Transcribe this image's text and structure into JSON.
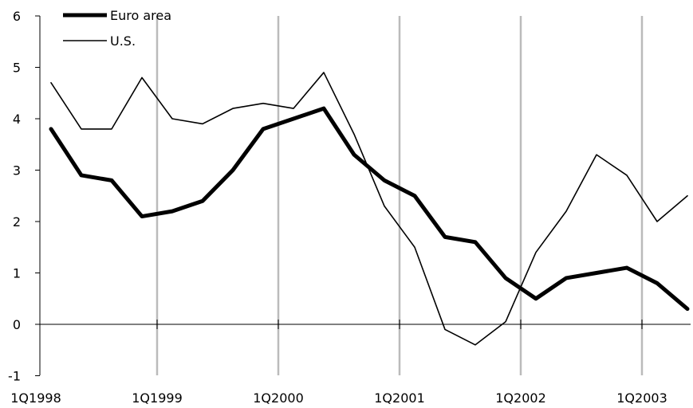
{
  "chart_data": {
    "type": "line",
    "title": "",
    "xlabel": "",
    "ylabel": "",
    "ylim": [
      -1,
      6
    ],
    "y_ticks": [
      -1,
      0,
      1,
      2,
      3,
      4,
      5,
      6
    ],
    "x_tick_labels": [
      "1Q1998",
      "1Q1999",
      "1Q2000",
      "1Q2001",
      "1Q2002",
      "1Q2003"
    ],
    "x": [
      "1Q1998",
      "2Q1998",
      "3Q1998",
      "4Q1998",
      "1Q1999",
      "2Q1999",
      "3Q1999",
      "4Q1999",
      "1Q2000",
      "2Q2000",
      "3Q2000",
      "4Q2000",
      "1Q2001",
      "2Q2001",
      "3Q2001",
      "4Q2001",
      "1Q2002",
      "2Q2002",
      "3Q2002",
      "4Q2002",
      "1Q2003",
      "2Q2003"
    ],
    "vertical_gridlines_at": [
      "1Q1999",
      "1Q2000",
      "1Q2001",
      "1Q2002",
      "1Q2003"
    ],
    "legend": {
      "placement": "top-left"
    },
    "series": [
      {
        "name": "Euro area",
        "style": "thick",
        "color": "#000000",
        "values": [
          3.8,
          2.9,
          2.8,
          2.1,
          2.2,
          2.4,
          3.0,
          3.8,
          4.0,
          4.2,
          3.3,
          2.8,
          2.5,
          1.7,
          1.6,
          0.9,
          0.5,
          0.9,
          1.0,
          1.1,
          0.8,
          0.3
        ]
      },
      {
        "name": "U.S.",
        "style": "thin",
        "color": "#000000",
        "values": [
          4.7,
          3.8,
          3.8,
          4.8,
          4.0,
          3.9,
          4.2,
          4.3,
          4.2,
          4.9,
          3.7,
          2.3,
          1.5,
          -0.1,
          -0.4,
          0.05,
          1.4,
          2.2,
          3.3,
          2.9,
          2.0,
          2.5
        ]
      }
    ],
    "colors": {
      "gridline": "#bbbbbb",
      "axis": "#000000"
    }
  }
}
